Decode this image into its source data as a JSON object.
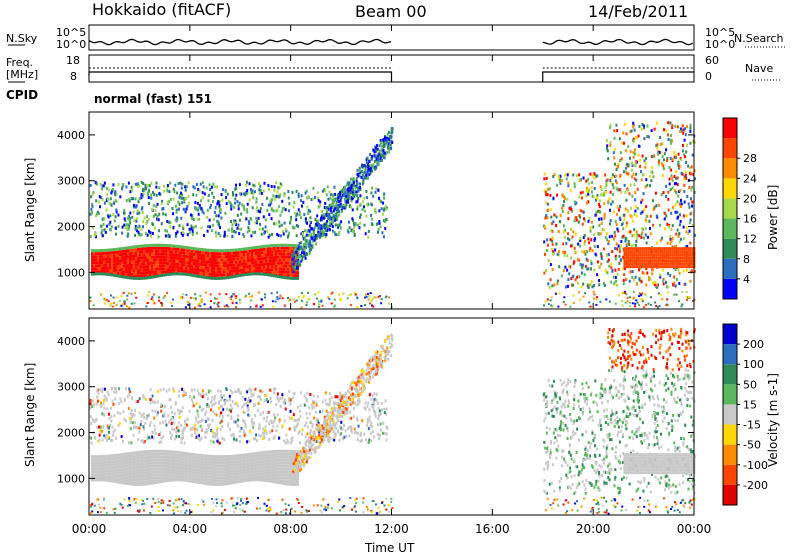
{
  "header": {
    "station": "Hokkaido (fitACF)",
    "beam": "Beam 00",
    "date": "14/Feb/2011"
  },
  "panels": {
    "nsky_label": "N.Sky",
    "nsearch_label": "N.Search",
    "freq_label_top": "Freq.",
    "freq_label_unit": "[MHz]",
    "nave_label": "Nave",
    "cpid_label": "CPID",
    "cpid_value": "normal (fast) 151",
    "noise_ticks_left": [
      "10^5",
      "10^0"
    ],
    "noise_ticks_right": [
      "10^5",
      "10^0"
    ],
    "freq_ticks": [
      "18",
      "8"
    ],
    "nave_ticks": [
      "60",
      "0"
    ]
  },
  "colors": {
    "power_scale": [
      "#0000ff",
      "#2a6fbf",
      "#2e8b57",
      "#5cb85c",
      "#a6d94a",
      "#ffd700",
      "#ff8c00",
      "#ff4500",
      "#ff0000"
    ],
    "velocity_scale": [
      "#0000cc",
      "#2a6fbf",
      "#2e8b57",
      "#5cb85c",
      "#c8c8c8",
      "#ffd700",
      "#ff8c00",
      "#ff4500",
      "#e00000"
    ]
  },
  "chart_data": [
    {
      "type": "heatmap",
      "name": "power",
      "ylabel": "Slant Range [km]",
      "yticks": [
        "1000",
        "2000",
        "3000",
        "4000"
      ],
      "ylim": [
        200,
        4500
      ],
      "xlim": [
        "00:00",
        "24:00"
      ],
      "data_gap": [
        "12:00",
        "18:00"
      ],
      "colorbar_label": "Power [dB]",
      "colorbar_ticks": [
        "4",
        "8",
        "12",
        "16",
        "20",
        "24",
        "28"
      ]
    },
    {
      "type": "heatmap",
      "name": "velocity",
      "ylabel": "Slant Range [km]",
      "xlabel": "Time UT",
      "yticks": [
        "1000",
        "2000",
        "3000",
        "4000"
      ],
      "xticks": [
        "00:00",
        "04:00",
        "08:00",
        "12:00",
        "16:00",
        "20:00",
        "00:00"
      ],
      "ylim": [
        200,
        4500
      ],
      "xlim": [
        "00:00",
        "24:00"
      ],
      "data_gap": [
        "12:00",
        "18:00"
      ],
      "colorbar_label": "Velocity [m s-1]",
      "colorbar_ticks": [
        "200",
        "100",
        "50",
        "15",
        "-15",
        "-50",
        "-100",
        "-200"
      ]
    }
  ]
}
